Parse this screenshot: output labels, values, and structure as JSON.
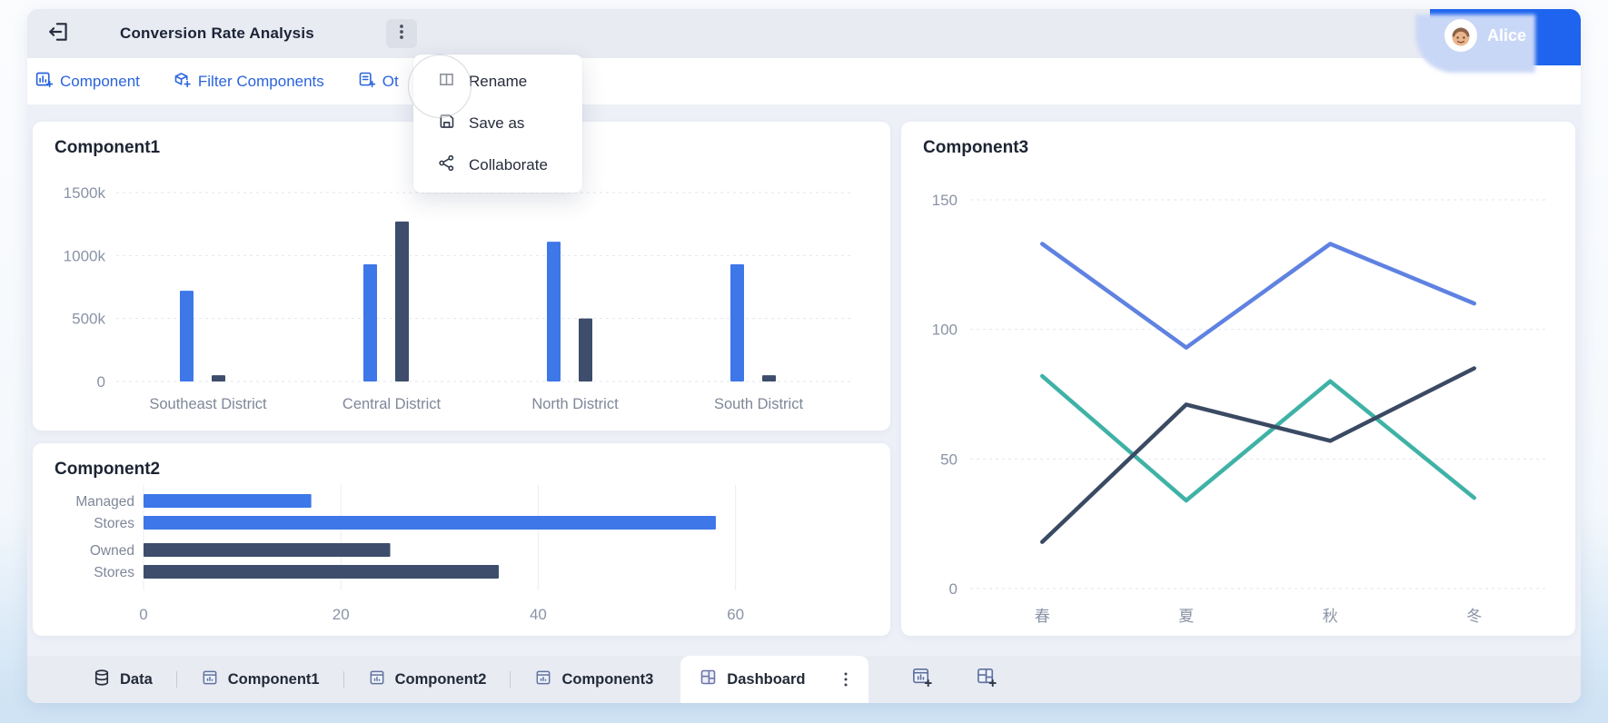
{
  "header": {
    "title": "Conversion Rate Analysis",
    "user_name": "Alice"
  },
  "toolbar": {
    "items": [
      {
        "label": "Component",
        "icon": "add-component-icon"
      },
      {
        "label": "Filter Components",
        "icon": "filter-components-icon"
      },
      {
        "label": "Ot",
        "icon": "add-other-icon"
      }
    ]
  },
  "context_menu": {
    "items": [
      {
        "label": "Rename",
        "icon": "rename-icon"
      },
      {
        "label": "Save as",
        "icon": "save-as-icon"
      },
      {
        "label": "Collaborate",
        "icon": "collaborate-icon"
      }
    ]
  },
  "chart_data": [
    {
      "type": "bar",
      "title": "Component1",
      "categories": [
        "Southeast District",
        "Central District",
        "North District",
        "South District"
      ],
      "series": [
        {
          "name": "blue",
          "color": "#3d77e8",
          "values": [
            720,
            930,
            1110,
            930
          ]
        },
        {
          "name": "dark",
          "color": "#3d4d6b",
          "values": [
            50,
            1270,
            500,
            50
          ]
        }
      ],
      "value_unit": "k",
      "ylim": [
        0,
        1500
      ],
      "yticks": [
        0,
        500,
        1000,
        1500
      ],
      "ytick_labels": [
        "0",
        "500k",
        "1000k",
        "1500k"
      ],
      "grid": true,
      "legend": false
    },
    {
      "type": "bar",
      "orientation": "horizontal",
      "title": "Component2",
      "category_labels": [
        "Managed Stores",
        "Owned Stores"
      ],
      "rows": [
        {
          "label": "Managed",
          "color": "#3d77e8",
          "value": 17
        },
        {
          "label": "Stores",
          "color": "#3d77e8",
          "value": 58
        },
        {
          "label": "Owned",
          "color": "#3d4d6b",
          "value": 25
        },
        {
          "label": "Stores",
          "color": "#3d4d6b",
          "value": 36
        }
      ],
      "xlim": [
        0,
        72
      ],
      "xticks": [
        0,
        20,
        40,
        60
      ],
      "grid": true,
      "legend": false
    },
    {
      "type": "line",
      "title": "Component3",
      "categories": [
        "春",
        "夏",
        "秋",
        "冬"
      ],
      "series": [
        {
          "name": "periwinkle",
          "color": "#5f82e2",
          "values": [
            133,
            93,
            133,
            110
          ]
        },
        {
          "name": "teal",
          "color": "#3fb2a6",
          "values": [
            82,
            34,
            80,
            35
          ]
        },
        {
          "name": "navy",
          "color": "#3a4a63",
          "values": [
            18,
            71,
            57,
            85
          ]
        }
      ],
      "ylim": [
        0,
        150
      ],
      "yticks": [
        0,
        50,
        100,
        150
      ],
      "grid": true,
      "legend": false
    }
  ],
  "tabbar": {
    "tabs": [
      {
        "label": "Data",
        "icon": "database-icon",
        "active": false
      },
      {
        "label": "Component1",
        "icon": "chart-sheet-icon",
        "active": false
      },
      {
        "label": "Component2",
        "icon": "chart-sheet-icon",
        "active": false
      },
      {
        "label": "Component3",
        "icon": "chart-sheet-icon",
        "active": false
      },
      {
        "label": "Dashboard",
        "icon": "dashboard-icon",
        "active": true
      }
    ]
  },
  "colors": {
    "accent_blue": "#2a64dd",
    "bar_blue": "#3d77e8",
    "bar_dark": "#3d4d6b",
    "line_blue": "#5f82e2",
    "line_teal": "#3fb2a6",
    "line_navy": "#3a4a63",
    "user_badge_blue": "#1e64ee",
    "topbar_bg": "#e9ebf2",
    "main_bg": "#edf0f7"
  }
}
